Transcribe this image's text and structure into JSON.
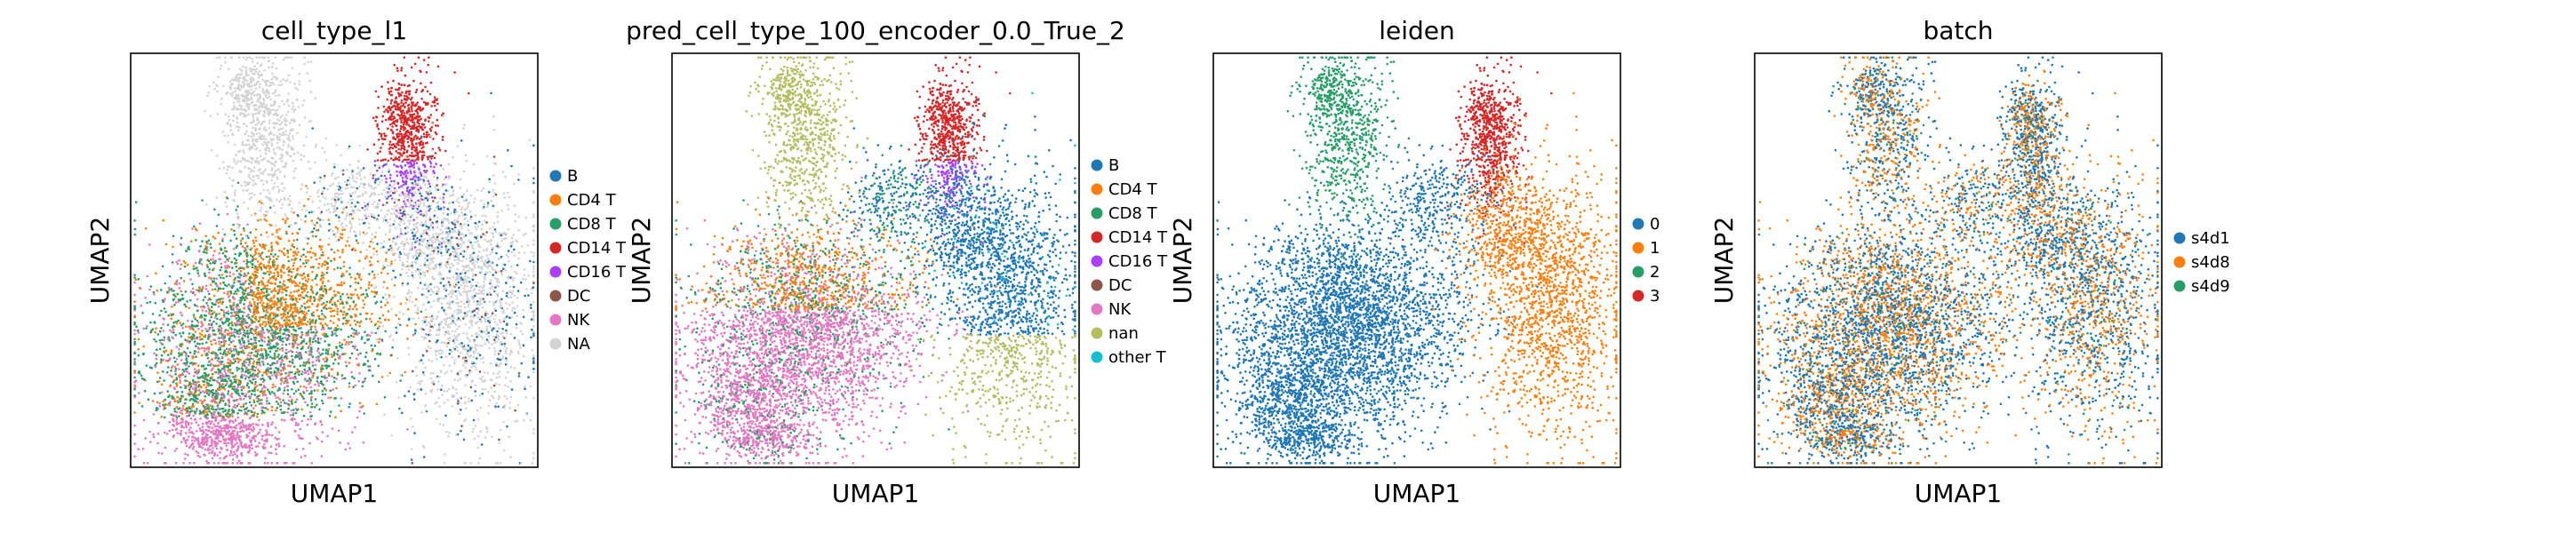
{
  "figure": {
    "chart_data": [
      {
        "type": "scatter",
        "title": "cell_type_l1",
        "xlabel": "UMAP1",
        "ylabel": "UMAP2",
        "grid": false,
        "ticks": "none",
        "legend_position": "right",
        "legend": [
          {
            "label": "B",
            "color": "#1f77b4"
          },
          {
            "label": "CD4 T",
            "color": "#ff7f0e"
          },
          {
            "label": "CD8 T",
            "color": "#279e68"
          },
          {
            "label": "CD14 T",
            "color": "#d62728"
          },
          {
            "label": "CD16 T",
            "color": "#aa40fc"
          },
          {
            "label": "DC",
            "color": "#8c564b"
          },
          {
            "label": "NK",
            "color": "#e377c2"
          },
          {
            "label": "NA",
            "color": "#d3d3d3"
          }
        ]
      },
      {
        "type": "scatter",
        "title": "pred_cell_type_100_encoder_0.0_True_2",
        "xlabel": "UMAP1",
        "ylabel": "UMAP2",
        "grid": false,
        "ticks": "none",
        "legend_position": "right",
        "legend": [
          {
            "label": "B",
            "color": "#1f77b4"
          },
          {
            "label": "CD4 T",
            "color": "#ff7f0e"
          },
          {
            "label": "CD8 T",
            "color": "#279e68"
          },
          {
            "label": "CD14 T",
            "color": "#d62728"
          },
          {
            "label": "CD16 T",
            "color": "#aa40fc"
          },
          {
            "label": "DC",
            "color": "#8c564b"
          },
          {
            "label": "NK",
            "color": "#e377c2"
          },
          {
            "label": "nan",
            "color": "#b5bd61"
          },
          {
            "label": "other T",
            "color": "#17becf"
          }
        ]
      },
      {
        "type": "scatter",
        "title": "leiden",
        "xlabel": "UMAP1",
        "ylabel": "UMAP2",
        "grid": false,
        "ticks": "none",
        "legend_position": "right",
        "legend": [
          {
            "label": "0",
            "color": "#1f77b4"
          },
          {
            "label": "1",
            "color": "#ff7f0e"
          },
          {
            "label": "2",
            "color": "#279e68"
          },
          {
            "label": "3",
            "color": "#d62728"
          }
        ]
      },
      {
        "type": "scatter",
        "title": "batch",
        "xlabel": "UMAP1",
        "ylabel": "UMAP2",
        "grid": false,
        "ticks": "none",
        "legend_position": "right",
        "legend": [
          {
            "label": "s4d1",
            "color": "#1f77b4"
          },
          {
            "label": "s4d8",
            "color": "#ff7f0e"
          },
          {
            "label": "s4d9",
            "color": "#279e68"
          }
        ]
      }
    ]
  }
}
